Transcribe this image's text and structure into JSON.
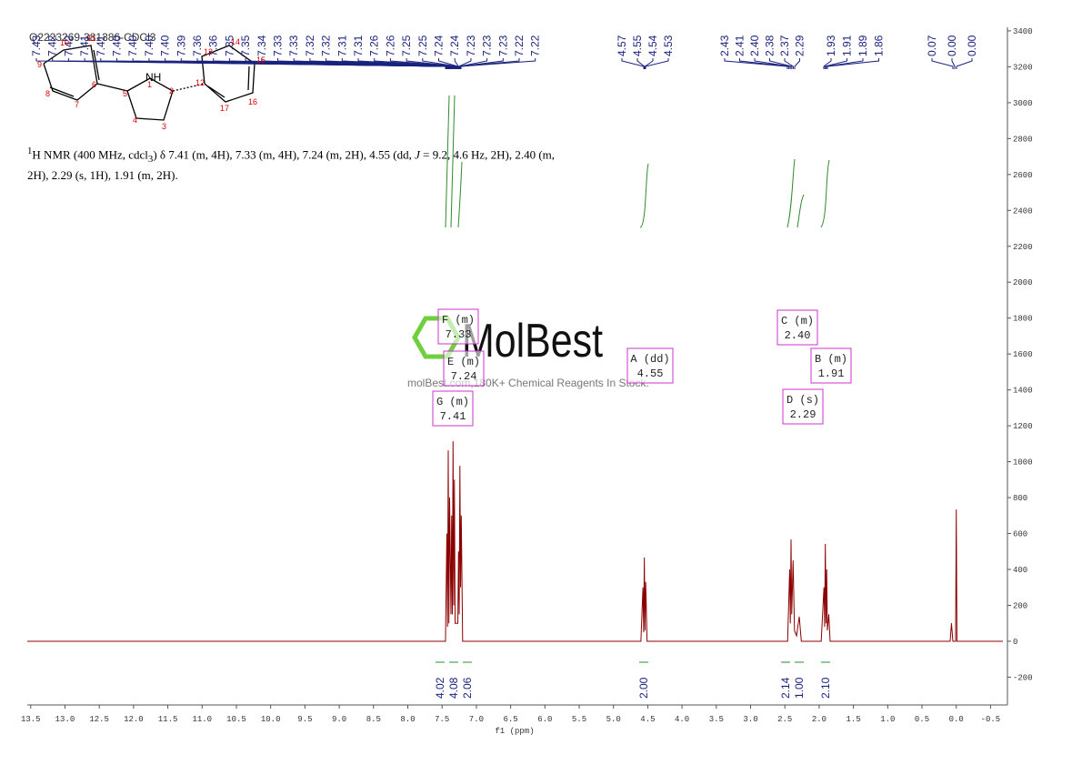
{
  "title": "Q2223269-381386-CDCl3",
  "structure": {
    "heteroatom": "NH",
    "atom_numbers": [
      "1",
      "2",
      "3",
      "4",
      "5",
      "6",
      "7",
      "8",
      "9",
      "10",
      "11",
      "12",
      "13",
      "14",
      "15",
      "16",
      "17"
    ]
  },
  "description": {
    "sup": "1",
    "part1": "H NMR (400 MHz, cdcl",
    "sub": "3",
    "part2": ") δ 7.41 (m, 4H), 7.33 (m, 4H), 7.24 (m, 2H), 4.55 (dd, ",
    "italic": "J",
    "part3": " = 9.2, 4.6 Hz, 2H), 2.40 (m, 2H), 2.29 (s, 1H), 1.91 (m, 2H)."
  },
  "watermark": {
    "brand": "MolBest",
    "slogan": "molBest.com,180K+ Chemical Reagents In Stock."
  },
  "chart_data": {
    "type": "line",
    "x_label": "f1 (ppm)",
    "xlim": [
      13.55,
      -0.68
    ],
    "xticks": [
      13.5,
      {
        "value": 13,
        "label": "13.0"
      },
      12.5,
      {
        "value": 12,
        "label": "12.0"
      },
      11.5,
      {
        "value": 11,
        "label": "11.0"
      },
      10.5,
      {
        "value": 10,
        "label": "10.0"
      },
      9.5,
      {
        "value": 9,
        "label": "9.0"
      },
      8.5,
      {
        "value": 8,
        "label": "8.0"
      },
      7.5,
      {
        "value": 7,
        "label": "7.0"
      },
      6.5,
      {
        "value": 6,
        "label": "6.0"
      },
      5.5,
      {
        "value": 5,
        "label": "5.0"
      },
      4.5,
      {
        "value": 4,
        "label": "4.0"
      },
      3.5,
      {
        "value": 3,
        "label": "3.0"
      },
      2.5,
      {
        "value": 2,
        "label": "2.0"
      },
      1.5,
      {
        "value": 1,
        "label": "1.0"
      },
      0.5,
      {
        "value": 0,
        "label": "0.0"
      },
      -0.5
    ],
    "ylim": [
      -355,
      3420
    ],
    "yticks": [
      -200,
      0,
      200,
      400,
      600,
      800,
      1000,
      1200,
      1400,
      1600,
      1800,
      2000,
      2200,
      2400,
      2600,
      2800,
      3000,
      3200,
      3400
    ],
    "series": [
      {
        "color": "#8b0000",
        "x": [
          13.55,
          8.0,
          7.45,
          7.43,
          7.42,
          7.41,
          7.4,
          7.39,
          7.37,
          7.36,
          7.35,
          7.34,
          7.33,
          7.32,
          7.31,
          7.27,
          7.26,
          7.25,
          7.24,
          7.23,
          7.22,
          7.2,
          4.6,
          4.57,
          4.56,
          4.55,
          4.54,
          4.53,
          4.51,
          2.46,
          2.43,
          2.42,
          2.41,
          2.4,
          2.38,
          2.36,
          2.33,
          2.29,
          2.26,
          1.97,
          1.93,
          1.92,
          1.91,
          1.9,
          1.89,
          1.88,
          1.86,
          1.84,
          0.09,
          0.07,
          0.05,
          0.01,
          0.0,
          -0.01,
          -0.68
        ],
        "values": [
          0,
          0,
          0,
          600,
          80,
          1063,
          100,
          800,
          150,
          700,
          150,
          1114,
          200,
          900,
          100,
          100,
          500,
          150,
          977,
          300,
          700,
          0,
          0,
          300,
          50,
          466,
          60,
          330,
          0,
          0,
          400,
          100,
          567,
          150,
          450,
          60,
          30,
          137,
          0,
          0,
          300,
          80,
          542,
          100,
          400,
          60,
          150,
          0,
          0,
          100,
          0,
          0,
          734,
          0,
          0
        ]
      }
    ],
    "peak_label_groups": [
      [
        "7.43",
        "7.42",
        "7.42",
        "7.41",
        "7.41",
        "7.40",
        "7.40",
        "7.40",
        "7.40",
        "7.39",
        "7.36",
        "7.36",
        "7.35",
        "7.35",
        "7.34",
        "7.33",
        "7.33",
        "7.32",
        "7.32",
        "7.31",
        "7.31",
        "7.26",
        "7.26",
        "7.25",
        "7.25",
        "7.24",
        "7.24",
        "7.23",
        "7.23",
        "7.23",
        "7.22",
        "7.22"
      ],
      [
        "4.57",
        "4.55",
        "4.54",
        "4.53"
      ],
      [
        "2.43",
        "2.41",
        "2.40",
        "2.38",
        "2.37",
        "2.29"
      ],
      [
        "1.93",
        "1.91",
        "1.89",
        "1.86"
      ],
      [
        "0.07",
        "0.00",
        "0.00"
      ]
    ],
    "integrals": [
      "4.02",
      "4.08",
      "2.06",
      "2.00",
      "2.14",
      "1.00",
      "2.10"
    ],
    "multiplets": [
      {
        "label": "F (m)",
        "shift": "7.33"
      },
      {
        "label": "E (m)",
        "shift": "7.24"
      },
      {
        "label": "G (m)",
        "shift": "7.41"
      },
      {
        "label": "A (dd)",
        "shift": "4.55"
      },
      {
        "label": "C (m)",
        "shift": "2.40"
      },
      {
        "label": "B (m)",
        "shift": "1.91"
      },
      {
        "label": "D (s)",
        "shift": "2.29"
      }
    ]
  }
}
